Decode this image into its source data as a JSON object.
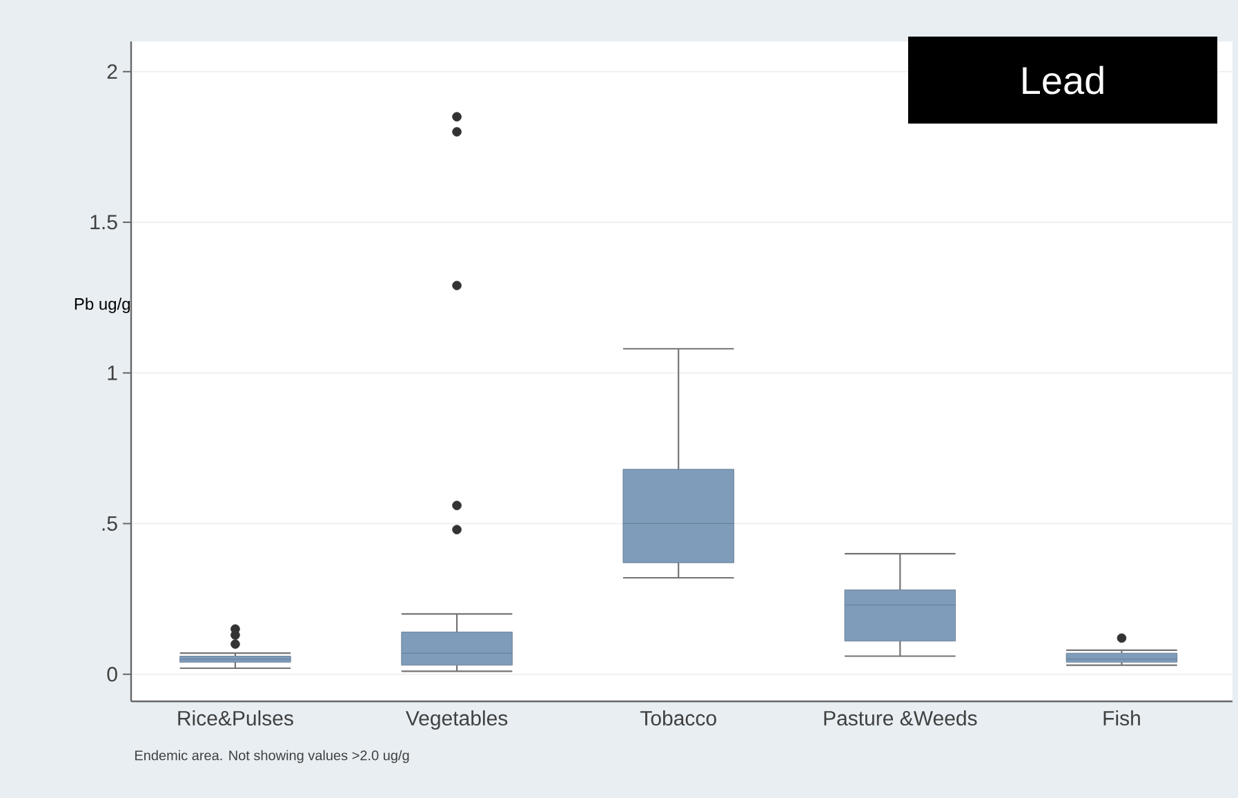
{
  "chart_data": {
    "type": "box",
    "title": "Lead",
    "ylabel": "Pb ug/g",
    "categories": [
      "Rice&Pulses",
      "Vegetables",
      "Tobacco",
      "Pasture &Weeds",
      "Fish"
    ],
    "boxes": [
      {
        "low": 0.02,
        "q1": 0.04,
        "median": 0.05,
        "q3": 0.06,
        "high": 0.07,
        "outliers": [
          0.1,
          0.13,
          0.15
        ]
      },
      {
        "low": 0.01,
        "q1": 0.03,
        "median": 0.07,
        "q3": 0.14,
        "high": 0.2,
        "outliers": [
          0.48,
          0.56,
          1.29,
          1.8,
          1.85
        ]
      },
      {
        "low": 0.32,
        "q1": 0.37,
        "median": 0.5,
        "q3": 0.68,
        "high": 1.08
      },
      {
        "low": 0.06,
        "q1": 0.11,
        "median": 0.23,
        "q3": 0.28,
        "high": 0.4
      },
      {
        "low": 0.03,
        "q1": 0.04,
        "median": 0.05,
        "q3": 0.07,
        "high": 0.08,
        "outliers": [
          0.12
        ]
      }
    ],
    "color": "#7f9cba",
    "ylim": [
      -0.09,
      2.1
    ],
    "yticks": [
      0,
      {
        "value": 0.5,
        "label": ".5"
      },
      1,
      1.5,
      2
    ],
    "grid": "y",
    "marker": "circle",
    "annotations": [
      "Endemic area. Not showing values >2.0 ug/g"
    ]
  }
}
